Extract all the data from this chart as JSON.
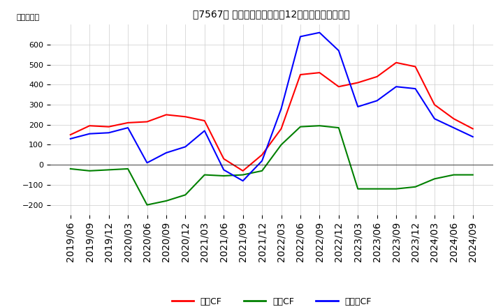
{
  "title": "　7567、 キャッシュフローの12か月移動合計の推移",
  "ylabel": "（百万円）",
  "ylim": [
    -250,
    700
  ],
  "yticks": [
    -200,
    -100,
    0,
    100,
    200,
    300,
    400,
    500,
    600
  ],
  "dates": [
    "2019/06",
    "2019/09",
    "2019/12",
    "2020/03",
    "2020/06",
    "2020/09",
    "2020/12",
    "2021/03",
    "2021/06",
    "2021/09",
    "2021/12",
    "2022/03",
    "2022/06",
    "2022/09",
    "2022/12",
    "2023/03",
    "2023/06",
    "2023/09",
    "2023/12",
    "2024/03",
    "2024/06",
    "2024/09"
  ],
  "eigyo_cf": [
    150,
    195,
    190,
    210,
    215,
    250,
    240,
    220,
    30,
    -30,
    50,
    180,
    450,
    460,
    390,
    410,
    440,
    510,
    490,
    300,
    230,
    180
  ],
  "toshi_cf": [
    -20,
    -30,
    -25,
    -20,
    -200,
    -180,
    -150,
    -50,
    -55,
    -50,
    -30,
    100,
    190,
    195,
    185,
    -120,
    -120,
    -120,
    -110,
    -70,
    -50,
    -50
  ],
  "free_cf": [
    130,
    155,
    160,
    185,
    10,
    60,
    90,
    170,
    -25,
    -80,
    20,
    280,
    640,
    660,
    570,
    290,
    320,
    390,
    380,
    230,
    185,
    140
  ],
  "eigyo_color": "#ff0000",
  "toshi_color": "#008000",
  "free_color": "#0000ff",
  "line_width": 1.5,
  "bg_color": "#ffffff",
  "grid_color": "#cccccc",
  "legend_labels": [
    "営業CF",
    "投資CF",
    "フリーCF"
  ]
}
